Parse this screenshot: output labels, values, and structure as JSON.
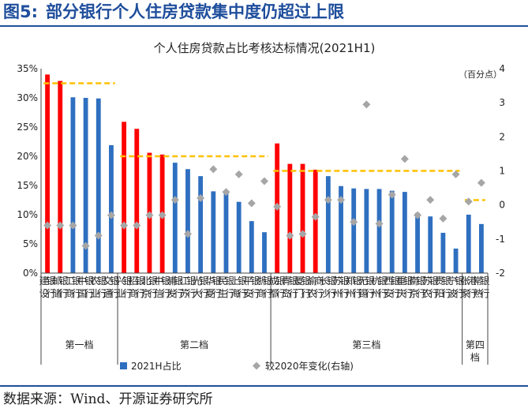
{
  "figure": {
    "number": "图5:",
    "title": "部分银行个人住房贷款集中度仍超过上限",
    "source": "数据来源：Wind、开源证券研究所"
  },
  "colors": {
    "bar_normal": "#2e6fc0",
    "bar_over": "#ff0000",
    "scatter": "#a6a6a6",
    "limit_line": "#ffc000",
    "frame": "#1f4e9c"
  },
  "chart_data": {
    "type": "bar",
    "title": "个人住房贷款占比考核达标情况(2021H1)",
    "right_axis_unit": "（百分点）",
    "y_left_ticks": [
      "0%",
      "5%",
      "10%",
      "15%",
      "20%",
      "25%",
      "30%",
      "35%"
    ],
    "y_left_range": [
      0,
      35
    ],
    "y_right_ticks": [
      "-2",
      "-1",
      "0",
      "1",
      "2",
      "3",
      "4"
    ],
    "y_right_range": [
      -2,
      4
    ],
    "categories": [
      "建设银行",
      "邮储银行",
      "工商银行",
      "中国银行",
      "农业银行",
      "交通银行",
      "兴业银行",
      "招商银行",
      "北京银行",
      "中信银行",
      "浦发银行",
      "江苏银行",
      "光大银行",
      "华夏银行",
      "民生银行",
      "上海银行",
      "平安银行",
      "浙商银行",
      "成都银行",
      "青岛银行",
      "厦门银行",
      "渝农商行",
      "长沙银行",
      "苏州银行",
      "郑州银行",
      "无锡银行",
      "杭州银行",
      "西安银行",
      "重庆银行",
      "南京银行",
      "苏农银行",
      "贵阳银行",
      "宁波银行",
      "张家港行",
      "常熟银行"
    ],
    "series": [
      {
        "name": "2021H占比",
        "axis": "left",
        "values": [
          34.0,
          32.9,
          30.1,
          30.0,
          29.9,
          21.9,
          25.9,
          24.7,
          20.6,
          20.3,
          18.9,
          17.8,
          16.6,
          14.0,
          14.0,
          12.2,
          8.9,
          7.0,
          22.2,
          18.7,
          18.7,
          17.7,
          16.6,
          14.9,
          14.5,
          14.4,
          14.4,
          14.1,
          13.9,
          10.3,
          9.7,
          6.9,
          4.2,
          10.0,
          8.4
        ]
      },
      {
        "name": "较2020年变化(右轴)",
        "axis": "right",
        "values": [
          -0.6,
          -0.6,
          -0.6,
          -1.2,
          -0.9,
          -0.3,
          -0.6,
          -0.6,
          -0.3,
          -0.3,
          0.15,
          -0.85,
          0.2,
          1.05,
          0.38,
          0.9,
          0.05,
          0.7,
          -0.05,
          -0.9,
          -0.85,
          -0.35,
          0.15,
          0.15,
          -0.5,
          2.95,
          -0.55,
          0.3,
          1.35,
          -0.3,
          0.15,
          -0.4,
          0.9,
          0.1,
          0.65
        ]
      }
    ],
    "over_limit": [
      true,
      true,
      false,
      false,
      false,
      false,
      true,
      true,
      true,
      true,
      false,
      false,
      false,
      false,
      false,
      false,
      false,
      false,
      true,
      true,
      true,
      true,
      false,
      false,
      false,
      false,
      false,
      false,
      false,
      false,
      false,
      false,
      false,
      false,
      false
    ],
    "limit_lines": [
      {
        "tier": "第一档",
        "value": 32.5,
        "start": 0,
        "end": 5
      },
      {
        "tier": "第二档",
        "value": 20.0,
        "start": 6,
        "end": 17
      },
      {
        "tier": "第三档",
        "value": 17.5,
        "start": 18,
        "end": 32
      },
      {
        "tier": "第四档",
        "value": 12.5,
        "start": 33,
        "end": 34
      }
    ],
    "tiers": [
      {
        "label": "第一档",
        "start": 0,
        "end": 5
      },
      {
        "label": "第二档",
        "start": 6,
        "end": 17
      },
      {
        "label": "第三档",
        "start": 18,
        "end": 32
      },
      {
        "label": "第四档",
        "start": 33,
        "end": 34
      }
    ],
    "legend": [
      "2021H占比",
      "较2020年变化(右轴)"
    ],
    "legend_position": "bottom"
  }
}
